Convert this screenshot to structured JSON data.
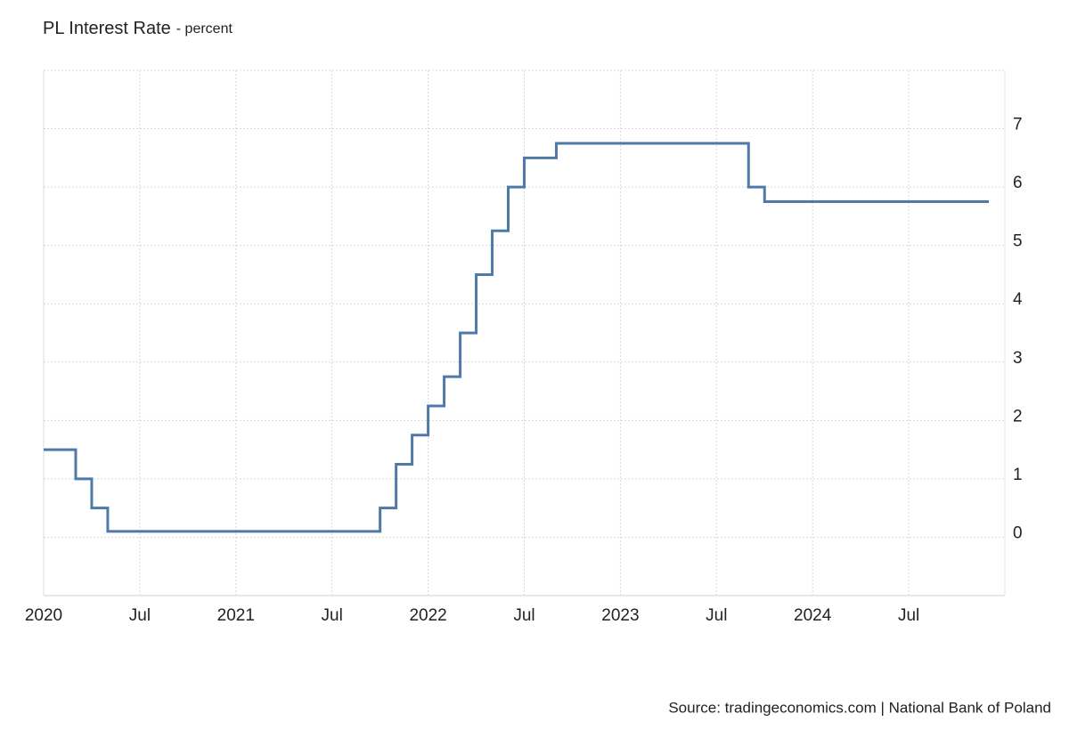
{
  "chart_data": {
    "type": "line",
    "step": true,
    "title": "PL Interest Rate",
    "subtitle": "- percent",
    "source": "Source: tradingeconomics.com | National Bank of Poland",
    "x": [
      "2020-01",
      "2020-03",
      "2020-04",
      "2020-05",
      "2021-10",
      "2021-11",
      "2021-12",
      "2022-01",
      "2022-02",
      "2022-03",
      "2022-04",
      "2022-05",
      "2022-06",
      "2022-07",
      "2022-09",
      "2023-09",
      "2023-10",
      "2024-12"
    ],
    "series": [
      {
        "name": "PL Interest Rate",
        "color": "#4f7aa8",
        "values": [
          1.5,
          1.0,
          0.5,
          0.1,
          0.5,
          1.25,
          1.75,
          2.25,
          2.75,
          3.5,
          4.5,
          5.25,
          6.0,
          6.5,
          6.75,
          6.0,
          5.75,
          5.75
        ]
      }
    ],
    "xlim": [
      "2020-01",
      "2025-01"
    ],
    "xticks": [
      {
        "value": "2020-01",
        "label": "2020"
      },
      {
        "value": "2020-07",
        "label": "Jul"
      },
      {
        "value": "2021-01",
        "label": "2021"
      },
      {
        "value": "2021-07",
        "label": "Jul"
      },
      {
        "value": "2022-01",
        "label": "2022"
      },
      {
        "value": "2022-07",
        "label": "Jul"
      },
      {
        "value": "2023-01",
        "label": "2023"
      },
      {
        "value": "2023-07",
        "label": "Jul"
      },
      {
        "value": "2024-01",
        "label": "2024"
      },
      {
        "value": "2024-07",
        "label": "Jul"
      }
    ],
    "ylim": [
      -1,
      8
    ],
    "yticks": [
      0,
      1,
      2,
      3,
      4,
      5,
      6,
      7
    ],
    "grid": true
  }
}
